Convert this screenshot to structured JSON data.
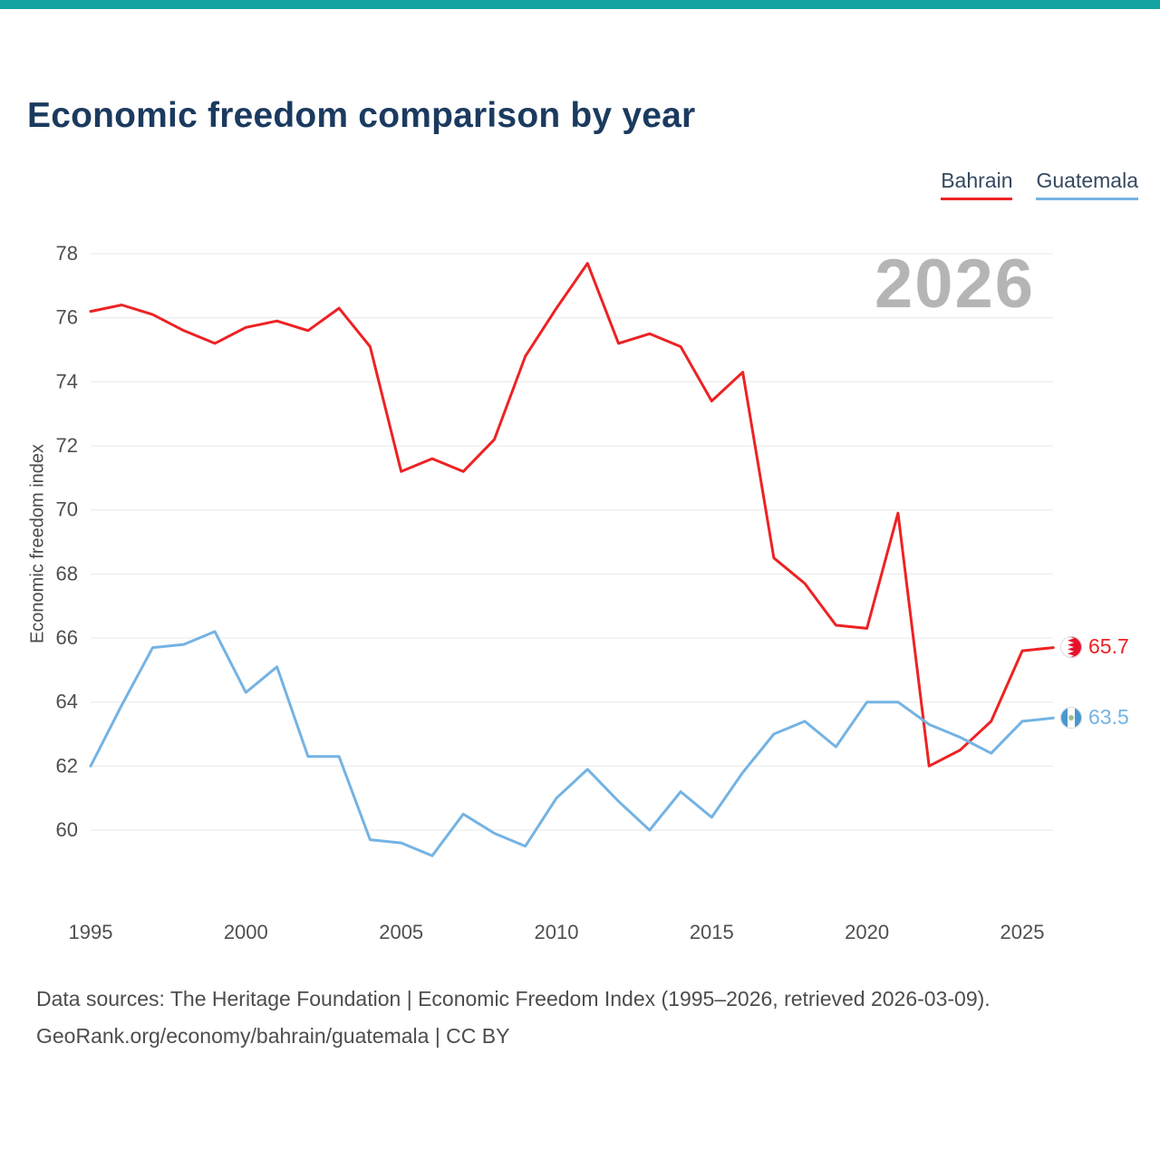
{
  "accent": {
    "topbar_color": "#14a3a3"
  },
  "header": {
    "title": "Economic freedom comparison by year"
  },
  "legend": [
    {
      "label": "Bahrain",
      "color": "#ed2224"
    },
    {
      "label": "Guatemala",
      "color": "#74b3e3"
    }
  ],
  "chart_data": {
    "type": "line",
    "title": "Economic freedom comparison by year",
    "watermark": "2026",
    "xlabel": "",
    "ylabel": "Economic freedom index",
    "grid": "horizontal",
    "legend_position": "top-right",
    "xticks": [
      1995,
      2000,
      2005,
      2010,
      2015,
      2020,
      2025
    ],
    "yticks": [
      60,
      62,
      64,
      66,
      68,
      70,
      72,
      74,
      76,
      78
    ],
    "ylim": [
      58.8,
      78.8
    ],
    "x": [
      1995,
      1996,
      1997,
      1998,
      1999,
      2000,
      2001,
      2002,
      2003,
      2004,
      2005,
      2006,
      2007,
      2008,
      2009,
      2010,
      2011,
      2012,
      2013,
      2014,
      2015,
      2016,
      2017,
      2018,
      2019,
      2020,
      2021,
      2022,
      2023,
      2024,
      2025,
      2026
    ],
    "series": [
      {
        "name": "Bahrain",
        "color": "#ed2224",
        "end_label": "65.7",
        "values": [
          76.2,
          76.4,
          76.1,
          75.6,
          75.2,
          75.7,
          75.9,
          75.6,
          76.3,
          75.1,
          71.2,
          71.6,
          71.2,
          72.2,
          74.8,
          76.3,
          77.7,
          75.2,
          75.5,
          75.1,
          73.4,
          74.3,
          68.5,
          67.7,
          66.4,
          66.3,
          69.9,
          62.0,
          62.5,
          63.4,
          65.6,
          65.7
        ]
      },
      {
        "name": "Guatemala",
        "color": "#74b3e3",
        "end_label": "63.5",
        "values": [
          62.0,
          63.9,
          65.7,
          65.8,
          66.2,
          64.3,
          65.1,
          62.3,
          62.3,
          59.7,
          59.6,
          59.2,
          60.5,
          59.9,
          59.5,
          61.0,
          61.9,
          60.9,
          60.0,
          61.2,
          60.4,
          61.8,
          63.0,
          63.4,
          62.6,
          64.0,
          64.0,
          63.3,
          62.9,
          62.4,
          63.4,
          63.5
        ]
      }
    ]
  },
  "footer": {
    "line1": "Data sources: The Heritage Foundation | Economic Freedom Index (1995–2026, retrieved 2026-03-09).",
    "line2": "GeoRank.org/economy/bahrain/guatemala | CC BY"
  }
}
